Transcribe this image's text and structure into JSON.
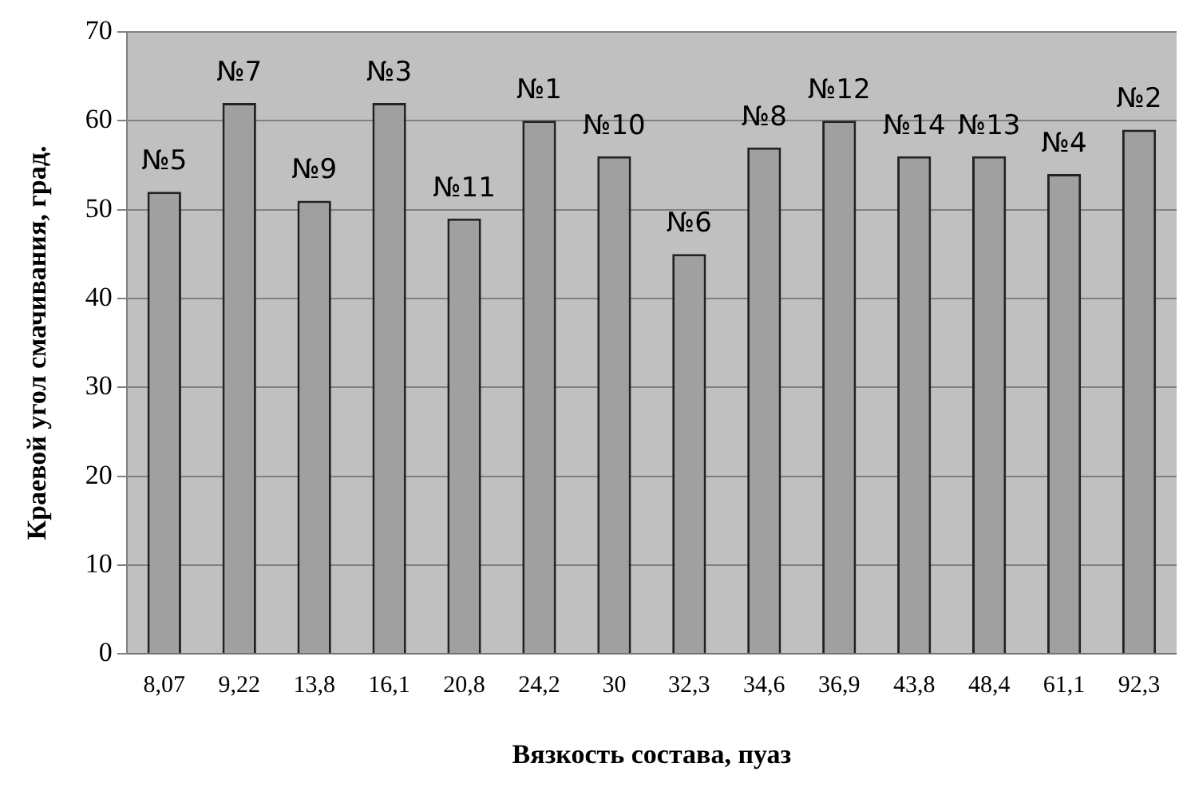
{
  "chart_data": {
    "type": "bar",
    "xlabel": "Вязкость состава, пуаз",
    "ylabel": "Краевой угол смачивания, град.",
    "categories": [
      "8,07",
      "9,22",
      "13,8",
      "16,1",
      "20,8",
      "24,2",
      "30",
      "32,3",
      "34,6",
      "36,9",
      "43,8",
      "48,4",
      "61,1",
      "92,3"
    ],
    "values": [
      52,
      62,
      51,
      62,
      49,
      60,
      56,
      45,
      57,
      60,
      56,
      56,
      54,
      59
    ],
    "color": "#a0a0a0",
    "ylim": [
      0,
      70
    ],
    "yticks": [
      0,
      10,
      20,
      30,
      40,
      50,
      60,
      70
    ],
    "grid": "y",
    "legend": false,
    "annotations": [
      {
        "text": "№5",
        "x": "8,07",
        "y": 52
      },
      {
        "text": "№7",
        "x": "9,22",
        "y": 62
      },
      {
        "text": "№9",
        "x": "13,8",
        "y": 51
      },
      {
        "text": "№3",
        "x": "16,1",
        "y": 62
      },
      {
        "text": "№11",
        "x": "20,8",
        "y": 49
      },
      {
        "text": "№1",
        "x": "24,2",
        "y": 60
      },
      {
        "text": "№10",
        "x": "30",
        "y": 56
      },
      {
        "text": "№6",
        "x": "32,3",
        "y": 45
      },
      {
        "text": "№8",
        "x": "34,6",
        "y": 57
      },
      {
        "text": "№12",
        "x": "36,9",
        "y": 60
      },
      {
        "text": "№14",
        "x": "43,8",
        "y": 56
      },
      {
        "text": "№13",
        "x": "48,4",
        "y": 56
      },
      {
        "text": "№4",
        "x": "61,1",
        "y": 54
      },
      {
        "text": "№2",
        "x": "92,3",
        "y": 59
      }
    ]
  }
}
